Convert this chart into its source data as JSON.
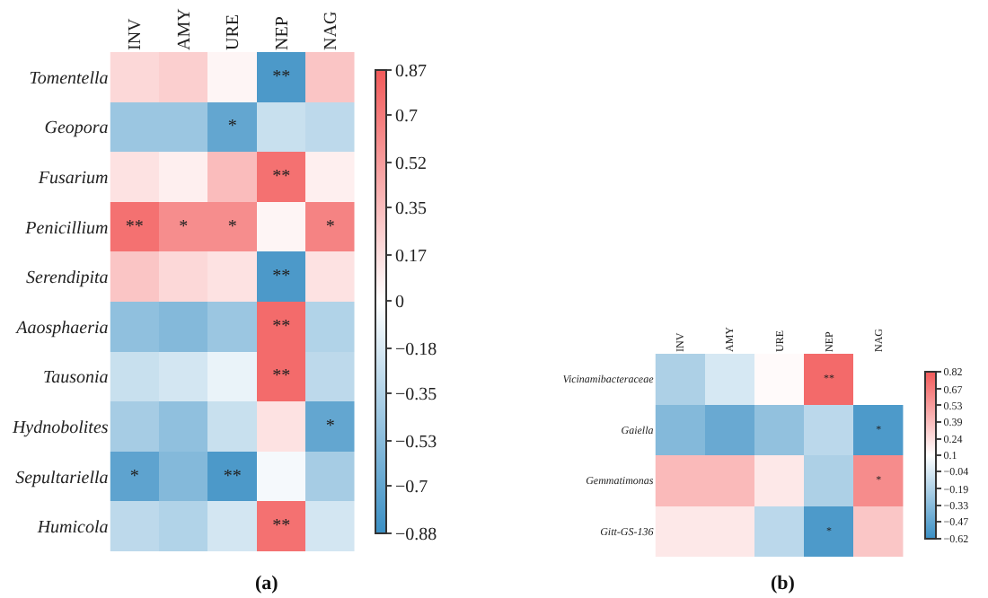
{
  "chart_data": [
    {
      "type": "heatmap",
      "categories": [
        "INV",
        "AMY",
        "URE",
        "NEP",
        "NAG"
      ],
      "y_categories": [
        "Tomentella",
        "Geopora",
        "Fusarium",
        "Penicillium",
        "Serendipita",
        "Aaosphaeria",
        "Tausonia",
        "Hydnobolites",
        "Sepultariella",
        "Humicola"
      ],
      "cells": [
        [
          0.2,
          0.25,
          0.05,
          -0.8,
          0.3
        ],
        [
          -0.45,
          -0.45,
          -0.7,
          -0.25,
          -0.3
        ],
        [
          0.15,
          0.08,
          0.35,
          0.75,
          0.08
        ],
        [
          0.75,
          0.6,
          0.6,
          0.05,
          0.65
        ],
        [
          0.3,
          0.2,
          0.15,
          -0.8,
          0.15
        ],
        [
          -0.5,
          -0.55,
          -0.45,
          0.78,
          -0.35
        ],
        [
          -0.25,
          -0.2,
          -0.1,
          0.78,
          -0.3
        ],
        [
          -0.4,
          -0.5,
          -0.25,
          0.15,
          -0.7
        ],
        [
          -0.72,
          -0.55,
          -0.8,
          -0.05,
          -0.4
        ],
        [
          -0.3,
          -0.35,
          -0.2,
          0.75,
          -0.2
        ]
      ],
      "cell_labels": [
        [
          null,
          null,
          null,
          "**",
          null
        ],
        [
          null,
          null,
          "*",
          null,
          null
        ],
        [
          null,
          null,
          null,
          "**",
          null
        ],
        [
          "**",
          "*",
          "*",
          null,
          "*"
        ],
        [
          null,
          null,
          null,
          "**",
          null
        ],
        [
          null,
          null,
          null,
          "**",
          null
        ],
        [
          null,
          null,
          null,
          "**",
          null
        ],
        [
          null,
          null,
          null,
          null,
          "*"
        ],
        [
          "*",
          null,
          "**",
          null,
          null
        ],
        [
          null,
          null,
          null,
          "**",
          null
        ]
      ],
      "clim": [
        -0.88,
        0.87
      ],
      "cticks": [
        -0.88,
        -0.7,
        -0.53,
        -0.35,
        -0.18,
        0,
        0.17,
        0.35,
        0.52,
        0.7,
        0.87
      ],
      "annotations": [
        "(a)"
      ]
    },
    {
      "type": "heatmap",
      "categories": [
        "INV",
        "AMY",
        "URE",
        "NEP",
        "NAG"
      ],
      "y_categories": [
        "Vicinamibacteraceae",
        "Gaiella",
        "Gemmatimonas",
        "Gitt-GS-136"
      ],
      "cells": [
        [
          -0.2,
          -0.05,
          0.12,
          0.75,
          0.1
        ],
        [
          -0.35,
          -0.45,
          -0.3,
          -0.15,
          -0.55
        ],
        [
          0.4,
          0.4,
          0.2,
          -0.2,
          0.6
        ],
        [
          0.2,
          0.2,
          -0.15,
          -0.55,
          0.35
        ]
      ],
      "cell_labels": [
        [
          null,
          null,
          null,
          "**",
          null
        ],
        [
          null,
          null,
          null,
          null,
          "*"
        ],
        [
          null,
          null,
          null,
          null,
          "*"
        ],
        [
          null,
          null,
          null,
          "*",
          null
        ]
      ],
      "clim": [
        -0.62,
        0.82
      ],
      "cticks": [
        -0.62,
        -0.47,
        -0.33,
        -0.19,
        -0.04,
        0.1,
        0.24,
        0.39,
        0.53,
        0.67,
        0.82
      ],
      "annotations": [
        "(b)"
      ]
    }
  ]
}
